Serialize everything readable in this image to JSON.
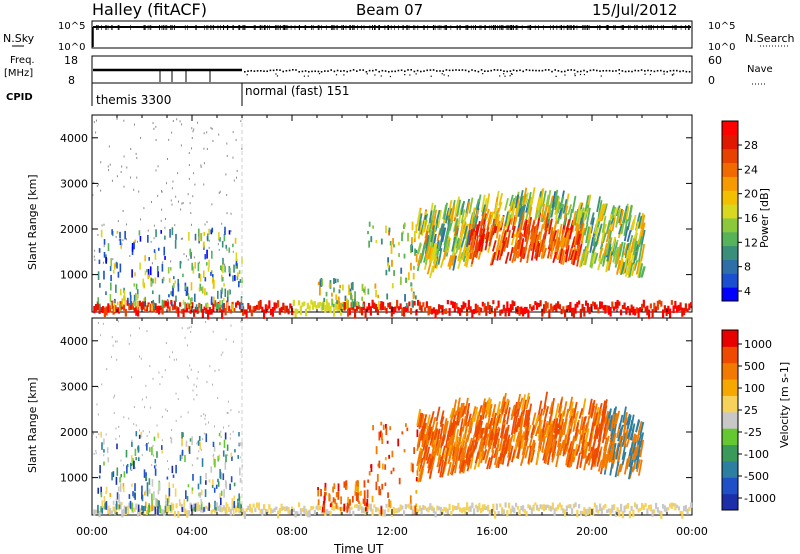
{
  "header": {
    "station": "Halley (fitACF)",
    "beam": "Beam 07",
    "date": "15/Jul/2012"
  },
  "strips": {
    "nsky_label": "N.Sky",
    "nsky_ticks": [
      "10^5",
      "10^0"
    ],
    "nsearch_label": "N.Search",
    "freq_label": "Freq.",
    "freq_unit": "[MHz]",
    "freq_ticks": [
      "18",
      "8"
    ],
    "nave_label": "Nave",
    "nave_ticks": [
      "60",
      "0"
    ],
    "cpid_label": "CPID",
    "cpid_segments": [
      {
        "name": "themis 3300",
        "start_hour": 0,
        "end_hour": 6
      },
      {
        "name": "normal (fast) 151",
        "start_hour": 6,
        "end_hour": 24
      }
    ]
  },
  "chart_data": [
    {
      "type": "heatmap",
      "panel": "power",
      "ylabel": "Slant Range [km]",
      "xlabel": "",
      "xlim_hours": [
        0,
        24
      ],
      "ylim": [
        180,
        4500
      ],
      "yticks": [
        1000,
        2000,
        3000,
        4000
      ],
      "colorbar": {
        "label": "Power [dB]",
        "ticks": [
          "28",
          "24",
          "20",
          "16",
          "12",
          "8",
          "4"
        ],
        "colors": [
          "#0000ff",
          "#1a4fd0",
          "#2f6fa8",
          "#3a8f7a",
          "#57b35a",
          "#8cc83c",
          "#d8d820",
          "#f2c000",
          "#f59a00",
          "#f06a00",
          "#e84200",
          "#e01800",
          "#ff0000"
        ]
      }
    },
    {
      "type": "heatmap",
      "panel": "velocity",
      "ylabel": "Slant Range [km]",
      "xlabel": "Time UT",
      "xlim_hours": [
        0,
        24
      ],
      "xticks": [
        "00:00",
        "04:00",
        "08:00",
        "12:00",
        "16:00",
        "20:00",
        "00:00"
      ],
      "ylim": [
        180,
        4500
      ],
      "yticks": [
        1000,
        2000,
        3000,
        4000
      ],
      "colorbar": {
        "label": "Velocity [m s-1]",
        "ticks": [
          "1000",
          "500",
          "100",
          "25",
          "-25",
          "-100",
          "-500",
          "-1000"
        ],
        "colors": [
          "#1c2fa8",
          "#2050c8",
          "#2c7fa0",
          "#3a9a5a",
          "#66c830",
          "#c8c8c8",
          "#f6d25a",
          "#f7a800",
          "#f37a00",
          "#ee4a00",
          "#e80000"
        ]
      }
    }
  ]
}
